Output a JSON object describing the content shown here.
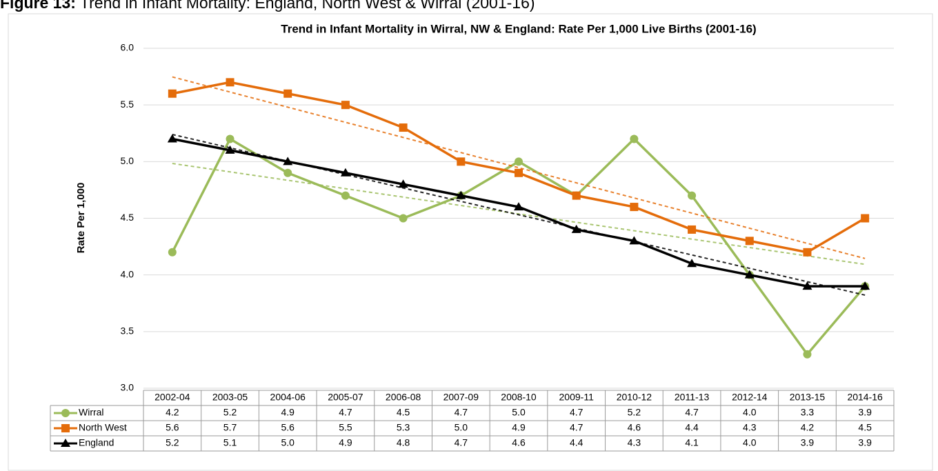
{
  "figure_label": "Figure 13:",
  "figure_title": "Trend in Infant Mortality: England, North West & Wirral (2001-16)",
  "chart_data": {
    "type": "line",
    "title": "Trend in Infant Mortality in Wirral, NW & England: Rate Per 1,000 Live Births (2001-16)",
    "y_label": "Rate Per 1,000",
    "categories": [
      "2002-04",
      "2003-05",
      "2004-06",
      "2005-07",
      "2006-08",
      "2007-09",
      "2008-10",
      "2009-11",
      "2010-12",
      "2011-13",
      "2012-14",
      "2013-15",
      "2014-16"
    ],
    "series": [
      {
        "name": "Wirral",
        "color": "#9bbb59",
        "marker": "circle",
        "trendline": true,
        "values": [
          4.2,
          5.2,
          4.9,
          4.7,
          4.5,
          4.7,
          5.0,
          4.7,
          5.2,
          4.7,
          4.0,
          3.3,
          3.9
        ],
        "value_labels": [
          "4.2",
          "5.2",
          "4.9",
          "4.7",
          "4.5",
          "4.7",
          "5.0",
          "4.7",
          "5.2",
          "4.7",
          "4.0",
          "3.3",
          "3.9"
        ]
      },
      {
        "name": "North West",
        "color": "#e46c0a",
        "marker": "square",
        "trendline": true,
        "values": [
          5.6,
          5.7,
          5.6,
          5.5,
          5.3,
          5.0,
          4.9,
          4.7,
          4.6,
          4.4,
          4.3,
          4.2,
          4.5
        ],
        "value_labels": [
          "5.6",
          "5.7",
          "5.6",
          "5.5",
          "5.3",
          "5.0",
          "4.9",
          "4.7",
          "4.6",
          "4.4",
          "4.3",
          "4.2",
          "4.5"
        ]
      },
      {
        "name": "England",
        "color": "#000000",
        "marker": "triangle",
        "trendline": true,
        "values": [
          5.2,
          5.1,
          5.0,
          4.9,
          4.8,
          4.7,
          4.6,
          4.4,
          4.3,
          4.1,
          4.0,
          3.9,
          3.9
        ],
        "value_labels": [
          "5.2",
          "5.1",
          "5.0",
          "4.9",
          "4.8",
          "4.7",
          "4.6",
          "4.4",
          "4.3",
          "4.1",
          "4.0",
          "3.9",
          "3.9"
        ]
      }
    ],
    "ylim": [
      3,
      6
    ],
    "yticks": [
      {
        "value": 3,
        "label": "3.0"
      },
      {
        "value": 3.5,
        "label": "3.5"
      },
      {
        "value": 4,
        "label": "4.0"
      },
      {
        "value": 4.5,
        "label": "4.5"
      },
      {
        "value": 5,
        "label": "5.0"
      },
      {
        "value": 5.5,
        "label": "5.5"
      },
      {
        "value": 6,
        "label": "6.0"
      }
    ],
    "grid": true,
    "data_table": true
  }
}
